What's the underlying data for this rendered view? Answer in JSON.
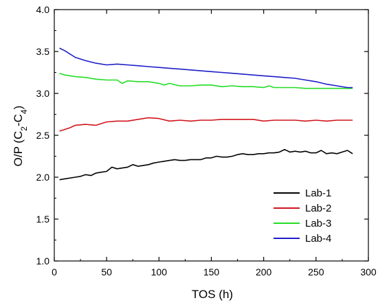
{
  "chart_data": {
    "type": "line",
    "xlabel": "TOS (h)",
    "ylabel": {
      "prefix": "O/P (C",
      "sub1": "2",
      "mid": "-C",
      "sub2": "4",
      "suffix": ")"
    },
    "xlim": [
      0,
      300
    ],
    "ylim": [
      1.0,
      4.0
    ],
    "xticks": [
      0,
      50,
      100,
      150,
      200,
      250,
      300
    ],
    "yticks": [
      "1.0",
      "1.5",
      "2.0",
      "2.5",
      "3.0",
      "3.5",
      "4.0"
    ],
    "grid": false,
    "legend_position": "bottom-right",
    "series": [
      {
        "name": "Lab-1",
        "color": "#000000",
        "x": [
          5,
          10,
          20,
          25,
          30,
          35,
          40,
          45,
          50,
          55,
          60,
          65,
          70,
          75,
          80,
          85,
          90,
          95,
          100,
          105,
          110,
          115,
          120,
          125,
          130,
          135,
          140,
          145,
          150,
          155,
          160,
          165,
          170,
          175,
          180,
          185,
          190,
          195,
          200,
          205,
          210,
          215,
          220,
          225,
          230,
          235,
          240,
          245,
          250,
          255,
          260,
          265,
          270,
          275,
          280,
          285
        ],
        "y": [
          1.97,
          1.98,
          2.0,
          2.01,
          2.03,
          2.02,
          2.05,
          2.06,
          2.07,
          2.12,
          2.1,
          2.11,
          2.12,
          2.15,
          2.13,
          2.14,
          2.15,
          2.17,
          2.18,
          2.19,
          2.2,
          2.21,
          2.2,
          2.2,
          2.21,
          2.21,
          2.21,
          2.23,
          2.23,
          2.25,
          2.24,
          2.24,
          2.25,
          2.27,
          2.28,
          2.27,
          2.27,
          2.28,
          2.28,
          2.29,
          2.29,
          2.3,
          2.33,
          2.3,
          2.31,
          2.3,
          2.31,
          2.29,
          2.29,
          2.32,
          2.28,
          2.29,
          2.28,
          2.3,
          2.32,
          2.28
        ]
      },
      {
        "name": "Lab-2",
        "color": "#d0141c",
        "x": [
          5,
          10,
          15,
          20,
          30,
          40,
          45,
          50,
          60,
          70,
          80,
          90,
          100,
          110,
          120,
          130,
          140,
          150,
          160,
          170,
          180,
          190,
          200,
          210,
          220,
          230,
          240,
          250,
          260,
          270,
          280,
          285
        ],
        "y": [
          2.55,
          2.57,
          2.59,
          2.62,
          2.63,
          2.62,
          2.64,
          2.66,
          2.67,
          2.67,
          2.69,
          2.71,
          2.7,
          2.67,
          2.68,
          2.67,
          2.68,
          2.68,
          2.69,
          2.69,
          2.69,
          2.69,
          2.67,
          2.68,
          2.68,
          2.68,
          2.67,
          2.68,
          2.67,
          2.68,
          2.68,
          2.68
        ]
      },
      {
        "name": "Lab-3",
        "color": "#22dd22",
        "x": [
          5,
          10,
          20,
          30,
          40,
          50,
          60,
          65,
          70,
          80,
          90,
          100,
          105,
          110,
          120,
          130,
          140,
          150,
          160,
          170,
          180,
          190,
          200,
          205,
          210,
          220,
          230,
          240,
          250,
          260,
          270,
          280,
          285
        ],
        "y": [
          3.24,
          3.22,
          3.2,
          3.19,
          3.17,
          3.16,
          3.16,
          3.12,
          3.15,
          3.14,
          3.14,
          3.12,
          3.1,
          3.12,
          3.09,
          3.09,
          3.1,
          3.1,
          3.08,
          3.09,
          3.08,
          3.08,
          3.07,
          3.09,
          3.07,
          3.07,
          3.07,
          3.06,
          3.06,
          3.06,
          3.06,
          3.06,
          3.06
        ]
      },
      {
        "name": "Lab-4",
        "color": "#1c1cc8",
        "x": [
          5,
          10,
          20,
          30,
          40,
          50,
          60,
          70,
          80,
          90,
          100,
          110,
          120,
          130,
          140,
          150,
          160,
          170,
          180,
          190,
          200,
          210,
          220,
          230,
          240,
          250,
          260,
          270,
          280,
          285
        ],
        "y": [
          3.54,
          3.51,
          3.43,
          3.39,
          3.36,
          3.34,
          3.35,
          3.34,
          3.33,
          3.32,
          3.31,
          3.3,
          3.29,
          3.28,
          3.27,
          3.26,
          3.25,
          3.24,
          3.23,
          3.22,
          3.21,
          3.2,
          3.19,
          3.18,
          3.16,
          3.14,
          3.11,
          3.09,
          3.07,
          3.07
        ]
      }
    ]
  }
}
